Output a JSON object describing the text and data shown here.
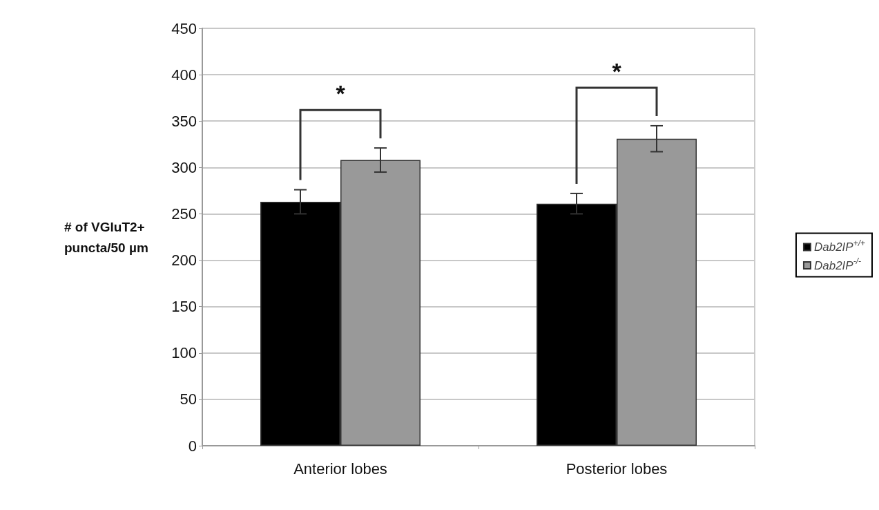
{
  "chart_data": {
    "type": "bar",
    "ylabel": "# of VGluT2+ puncta/50 µm",
    "categories": [
      "Anterior lobes",
      "Posterior lobes"
    ],
    "series": [
      {
        "name": "Dab2IP$^{+/+}$",
        "color": "#000000",
        "values": [
          263,
          261
        ],
        "errors": [
          13,
          11
        ]
      },
      {
        "name": "Dab2IP$^{-/-}$",
        "color": "#999999",
        "values": [
          308,
          331
        ],
        "errors": [
          13,
          14
        ]
      }
    ],
    "annotations": [
      "*",
      "*"
    ],
    "ylim": [
      0,
      450
    ],
    "yticks": [
      0,
      50,
      100,
      150,
      200,
      250,
      300,
      350,
      400,
      450
    ],
    "grid": "y",
    "legend": "right"
  }
}
